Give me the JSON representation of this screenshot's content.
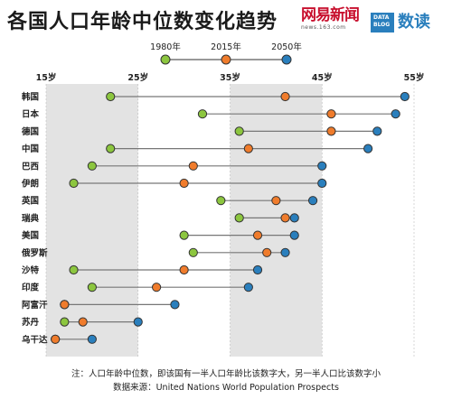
{
  "header": {
    "title": "各国人口年龄中位数变化趋势",
    "brand": "网易新闻",
    "brand_sub": "news.163.com",
    "datablog": "DATA BLOG",
    "shudu": "数读"
  },
  "footer": {
    "note": "注：人口年龄中位数，即该国有一半人口年龄比该数字大，另一半人口比该数字小",
    "source": "数据来源：United Nations World Population Prospects"
  },
  "colors": {
    "y1980": "#8cc63f",
    "y2015": "#f07c2c",
    "y2050": "#2a7fbd",
    "band": "#e3e3e3",
    "line": "#777777"
  },
  "chart_data": {
    "type": "dot-range",
    "xlim": [
      15,
      55
    ],
    "xticks": [
      "15岁",
      "25岁",
      "35岁",
      "45岁",
      "55岁"
    ],
    "xtick_values": [
      15,
      25,
      35,
      45,
      55
    ],
    "legend": [
      "1980年",
      "2015年",
      "2050年"
    ],
    "categories": [
      "韩国",
      "日本",
      "德国",
      "中国",
      "巴西",
      "伊朗",
      "英国",
      "瑞典",
      "美国",
      "俄罗斯",
      "沙特",
      "印度",
      "阿富汗",
      "苏丹",
      "乌干达"
    ],
    "series": [
      {
        "name": "1980年",
        "values": [
          22,
          32,
          36,
          22,
          20,
          18,
          34,
          36,
          30,
          31,
          18,
          20,
          17,
          17,
          16
        ]
      },
      {
        "name": "2015年",
        "values": [
          41,
          46,
          46,
          37,
          31,
          30,
          40,
          41,
          38,
          39,
          30,
          27,
          17,
          19,
          16
        ]
      },
      {
        "name": "2050年",
        "values": [
          54,
          53,
          51,
          50,
          45,
          45,
          44,
          42,
          42,
          41,
          38,
          37,
          29,
          25,
          20
        ]
      }
    ]
  }
}
